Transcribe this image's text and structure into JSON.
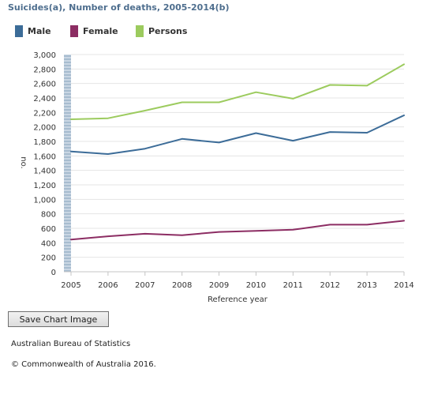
{
  "chart_data": {
    "type": "line",
    "title": "Suicides(a), Number of deaths, 2005-2014(b)",
    "xlabel": "Reference year",
    "ylabel": "no.",
    "categories": [
      "2005",
      "2006",
      "2007",
      "2008",
      "2009",
      "2010",
      "2011",
      "2012",
      "2013",
      "2014"
    ],
    "ylim": [
      0,
      3000
    ],
    "yticks": [
      "0",
      "200",
      "400",
      "600",
      "800",
      "1,000",
      "1,200",
      "1,400",
      "1,600",
      "1,800",
      "2,000",
      "2,200",
      "2,400",
      "2,600",
      "2,800",
      "3,000"
    ],
    "grid": true,
    "legend_position": "top-left",
    "series": [
      {
        "name": "Male",
        "color": "#3c6c98",
        "values": [
          1660,
          1625,
          1700,
          1835,
          1785,
          1915,
          1810,
          1930,
          1920,
          2160
        ]
      },
      {
        "name": "Female",
        "color": "#8c2d63",
        "values": [
          445,
          490,
          525,
          505,
          550,
          565,
          580,
          650,
          650,
          705
        ]
      },
      {
        "name": "Persons",
        "color": "#9ccb5e",
        "values": [
          2105,
          2120,
          2225,
          2340,
          2340,
          2480,
          2390,
          2580,
          2570,
          2865
        ]
      }
    ]
  },
  "ui": {
    "save_button": "Save Chart Image",
    "source": "Australian Bureau of Statistics",
    "copyright": "© Commonwealth of Australia 2016."
  }
}
